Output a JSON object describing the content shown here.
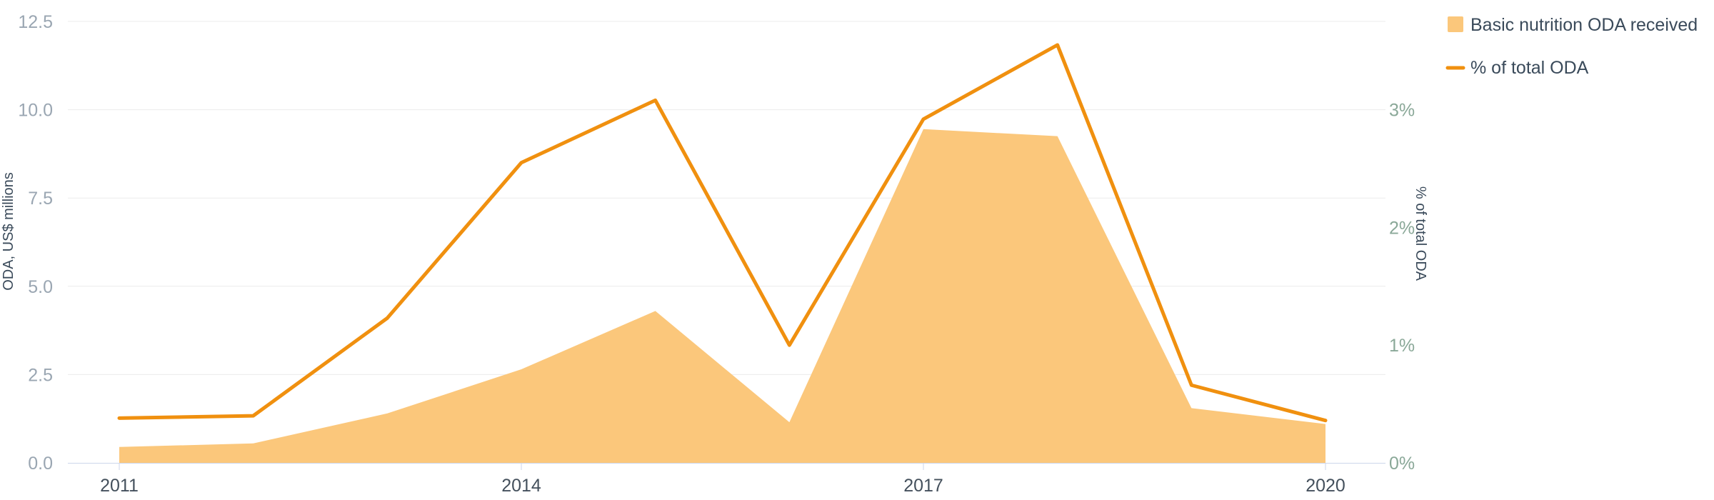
{
  "chart_data": {
    "type": "area",
    "years": [
      2011,
      2012,
      2013,
      2014,
      2015,
      2016,
      2017,
      2018,
      2019,
      2020
    ],
    "x_tick_labels": [
      "2011",
      "2014",
      "2017",
      "2020"
    ],
    "x_tick_years": [
      2011,
      2014,
      2017,
      2020
    ],
    "series": [
      {
        "name": "Basic nutrition ODA received",
        "kind": "area",
        "axis": "left",
        "color": "#fbc77b",
        "values": [
          0.45,
          0.55,
          1.4,
          2.65,
          4.3,
          1.15,
          9.45,
          9.25,
          1.55,
          1.1
        ]
      },
      {
        "name": "% of total ODA",
        "kind": "line",
        "axis": "right",
        "color": "#f0900f",
        "values": [
          0.38,
          0.4,
          1.23,
          2.55,
          3.08,
          1.0,
          2.92,
          3.55,
          0.66,
          0.36
        ]
      }
    ],
    "left_axis": {
      "title": "ODA, US$ millions",
      "range": [
        0,
        12.5
      ],
      "ticks": [
        0,
        2.5,
        5,
        7.5,
        10,
        12.5
      ],
      "tick_labels": [
        "0.0",
        "2.5",
        "5.0",
        "7.5",
        "10.0",
        "12.5"
      ]
    },
    "right_axis": {
      "title": "% of total ODA",
      "range": [
        0,
        3.75
      ],
      "ticks": [
        0,
        1,
        2,
        3
      ],
      "tick_labels": [
        "0%",
        "1%",
        "2%",
        "3%"
      ]
    },
    "legend": {
      "placement": "top-right",
      "items": [
        "Basic nutrition ODA received",
        "% of total ODA"
      ]
    },
    "grid": true
  }
}
